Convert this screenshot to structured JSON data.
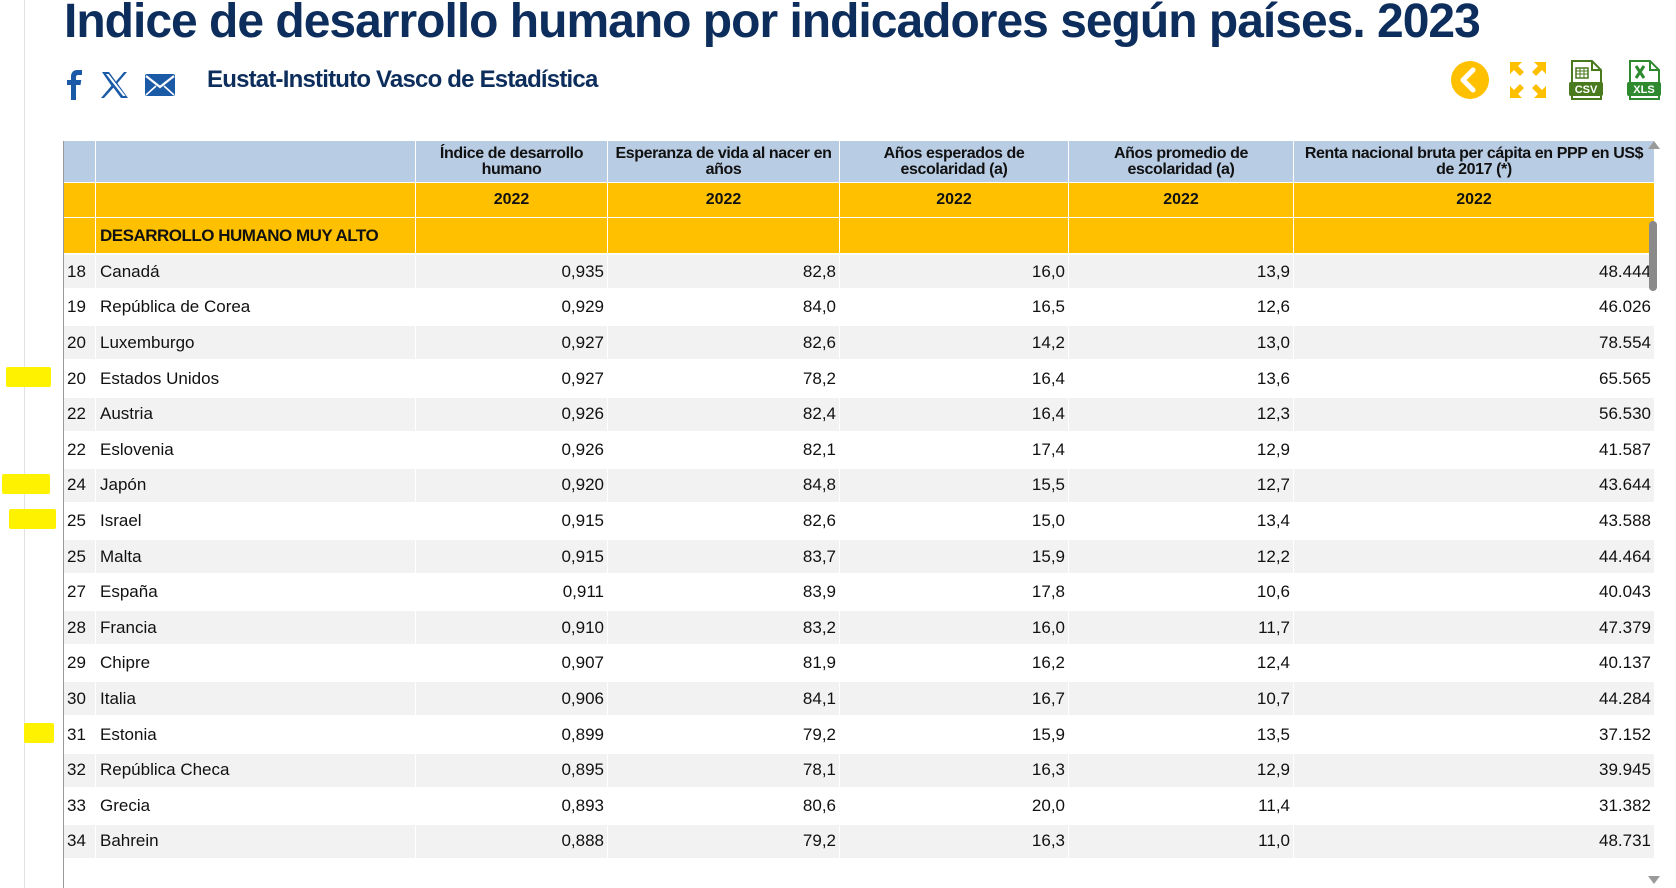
{
  "page": {
    "title": "Indice de desarrollo humano por indicadores según países. 2023",
    "source": "Eustat-Instituto Vasco de Estadística"
  },
  "share_icons": [
    "facebook-icon",
    "x-twitter-icon",
    "email-icon"
  ],
  "tools": [
    "back-icon",
    "fullscreen-icon",
    "csv-download-icon",
    "xls-download-icon"
  ],
  "colors": {
    "title": "#0d2e5c",
    "header_blue": "#b8cce4",
    "header_gold": "#ffc000",
    "highlight": "#fff200",
    "row_alt": "#f2f2f2",
    "back_button": "#ffc000",
    "download": "#4a7a1e"
  },
  "table": {
    "columns": [
      "Índice de desarrollo humano",
      "Esperanza de vida al nacer en años",
      "Años esperados de escolaridad (a)",
      "Años promedio de escolaridad (a)",
      "Renta nacional bruta per cápita en PPP en US$ de 2017 (*)"
    ],
    "years": [
      "2022",
      "2022",
      "2022",
      "2022",
      "2022"
    ],
    "group": "DESARROLLO HUMANO MUY ALTO",
    "rows": [
      {
        "rank": "18",
        "country": "Canadá",
        "v": [
          "0,935",
          "82,8",
          "16,0",
          "13,9",
          "48.444"
        ]
      },
      {
        "rank": "19",
        "country": "República de Corea",
        "v": [
          "0,929",
          "84,0",
          "16,5",
          "12,6",
          "46.026"
        ]
      },
      {
        "rank": "20",
        "country": "Luxemburgo",
        "v": [
          "0,927",
          "82,6",
          "14,2",
          "13,0",
          "78.554"
        ]
      },
      {
        "rank": "20",
        "country": "Estados Unidos",
        "v": [
          "0,927",
          "78,2",
          "16,4",
          "13,6",
          "65.565"
        ],
        "highlighted": true
      },
      {
        "rank": "22",
        "country": "Austria",
        "v": [
          "0,926",
          "82,4",
          "16,4",
          "12,3",
          "56.530"
        ]
      },
      {
        "rank": "22",
        "country": "Eslovenia",
        "v": [
          "0,926",
          "82,1",
          "17,4",
          "12,9",
          "41.587"
        ]
      },
      {
        "rank": "24",
        "country": "Japón",
        "v": [
          "0,920",
          "84,8",
          "15,5",
          "12,7",
          "43.644"
        ],
        "highlighted": true
      },
      {
        "rank": "25",
        "country": "Israel",
        "v": [
          "0,915",
          "82,6",
          "15,0",
          "13,4",
          "43.588"
        ],
        "highlighted": true
      },
      {
        "rank": "25",
        "country": "Malta",
        "v": [
          "0,915",
          "83,7",
          "15,9",
          "12,2",
          "44.464"
        ]
      },
      {
        "rank": "27",
        "country": "España",
        "v": [
          "0,911",
          "83,9",
          "17,8",
          "10,6",
          "40.043"
        ]
      },
      {
        "rank": "28",
        "country": "Francia",
        "v": [
          "0,910",
          "83,2",
          "16,0",
          "11,7",
          "47.379"
        ]
      },
      {
        "rank": "29",
        "country": "Chipre",
        "v": [
          "0,907",
          "81,9",
          "16,2",
          "12,4",
          "40.137"
        ]
      },
      {
        "rank": "30",
        "country": "Italia",
        "v": [
          "0,906",
          "84,1",
          "16,7",
          "10,7",
          "44.284"
        ]
      },
      {
        "rank": "31",
        "country": "Estonia",
        "v": [
          "0,899",
          "79,2",
          "15,9",
          "13,5",
          "37.152"
        ],
        "highlighted": true
      },
      {
        "rank": "32",
        "country": "República Checa",
        "v": [
          "0,895",
          "78,1",
          "16,3",
          "12,9",
          "39.945"
        ]
      },
      {
        "rank": "33",
        "country": "Grecia",
        "v": [
          "0,893",
          "80,6",
          "20,0",
          "11,4",
          "31.382"
        ]
      },
      {
        "rank": "34",
        "country": "Bahrein",
        "v": [
          "0,888",
          "79,2",
          "16,3",
          "11,0",
          "48.731"
        ]
      }
    ]
  }
}
